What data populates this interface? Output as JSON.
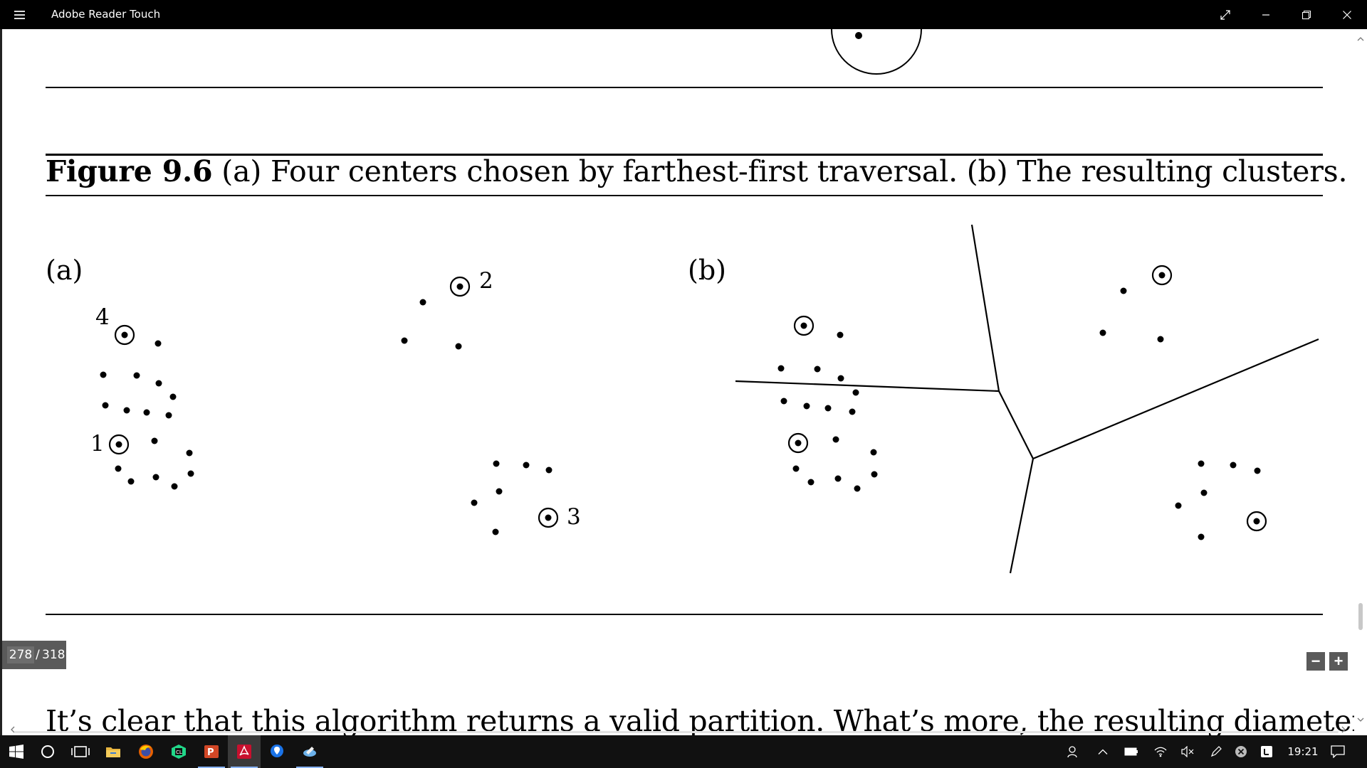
{
  "window": {
    "title": "Adobe Reader Touch"
  },
  "document": {
    "caption_bold": "Figure 9.6",
    "caption_rest": " (a) Four centers chosen by farthest-first traversal. (b) The resulting clusters.",
    "panel_a_label": "(a)",
    "panel_b_label": "(b)",
    "center_labels": [
      "1",
      "2",
      "3",
      "4"
    ],
    "body_text": "It’s clear that this algorithm returns a valid partition. What’s more, the resulting diameter is"
  },
  "page_counter": {
    "current": "278",
    "separator": "/",
    "total": "318"
  },
  "zoom": {
    "minus": "−",
    "plus": "+"
  },
  "taskbar": {
    "clock": "19:21",
    "apps": [
      "start-icon",
      "cortana-icon",
      "task-view-icon",
      "file-explorer-icon",
      "firefox-icon",
      "ide-icon",
      "powerpoint-icon",
      "adobe-reader-icon",
      "maps-icon",
      "tools-icon"
    ]
  },
  "colors": {
    "titlebar": "#000000",
    "taskbar": "#111111",
    "page_counter": "#5a5a5a",
    "powerpoint": "#d24726",
    "adobe": "#c8102e"
  }
}
